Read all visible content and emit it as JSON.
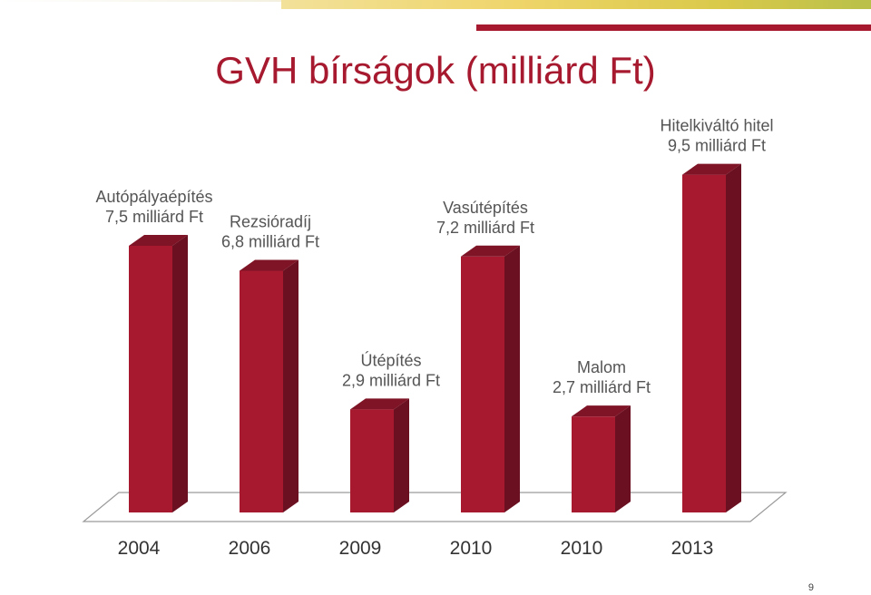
{
  "title": "GVH bírságok (milliárd Ft)",
  "slide_number": "9",
  "colors": {
    "bar_front": "#a6192e",
    "bar_side": "#6b1020",
    "bar_top": "#7e1426",
    "accent": "#a6192e"
  },
  "chart_data": {
    "type": "bar",
    "title": "GVH bírságok (milliárd Ft)",
    "ylabel": "",
    "xlabel": "",
    "categories": [
      "2004",
      "2006",
      "2009",
      "2010",
      "2010",
      "2013"
    ],
    "values": [
      7.5,
      6.8,
      2.9,
      7.2,
      2.7,
      9.5
    ],
    "data_labels": [
      [
        "Autópályaépítés",
        "7,5 milliárd Ft"
      ],
      [
        "Rezsióradíj",
        "6,8 milliárd Ft"
      ],
      [
        "Útépítés",
        "2,9 milliárd Ft"
      ],
      [
        "Vasútépítés",
        "7,2 milliárd Ft"
      ],
      [
        "Malom",
        "2,7 milliárd Ft"
      ],
      [
        "Hitelkiváltó hitel",
        "9,5 milliárd Ft"
      ]
    ],
    "ylim": [
      0,
      10
    ],
    "grid": false,
    "legend": "none",
    "style": "3d-columns"
  }
}
